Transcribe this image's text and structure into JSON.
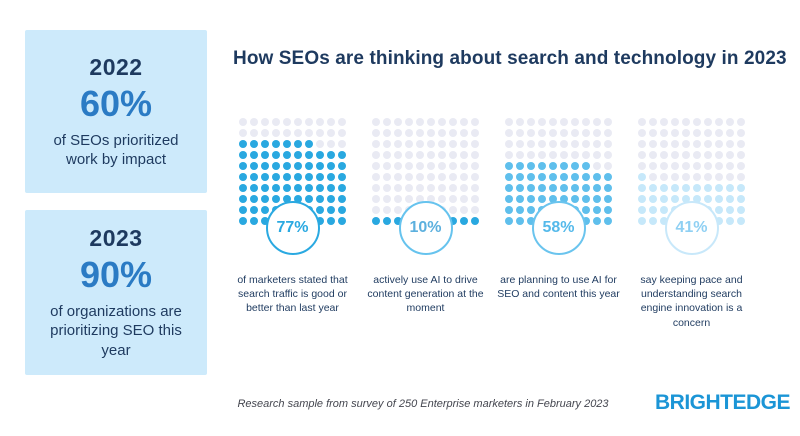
{
  "title": "How SEOs are thinking about search and technology in 2023",
  "sidebar": {
    "cards": [
      {
        "year": "2022",
        "percent": "60%",
        "description": "of SEOs prioritized work by impact"
      },
      {
        "year": "2023",
        "percent": "90%",
        "description": "of organizations are prioritizing SEO this year"
      }
    ]
  },
  "colors": {
    "navy": "#1e3a5f",
    "stat_blue": "#2b7bc4",
    "card_bg": "#cdeafb",
    "logo_blue": "#1b95d6"
  },
  "chart_data": [
    {
      "type": "waffle",
      "rows": 10,
      "cols": 10,
      "value": 77,
      "max": 100,
      "label": "77%",
      "caption": "of marketers stated that search traffic is good or better than last year",
      "fill_color": "#29a8e0",
      "empty_color": "#e9eaf3",
      "circle_border": "#2aa9e1",
      "label_color": "#2aa9e1"
    },
    {
      "type": "waffle",
      "rows": 10,
      "cols": 10,
      "value": 10,
      "max": 100,
      "label": "10%",
      "caption": "actively use AI to drive content generation at the moment",
      "fill_color": "#29a8e0",
      "empty_color": "#e9eaf3",
      "circle_border": "#66c3ee",
      "label_color": "#5cb0de"
    },
    {
      "type": "waffle",
      "rows": 10,
      "cols": 10,
      "value": 58,
      "max": 100,
      "label": "58%",
      "caption": "are planning to use AI for SEO and content this year",
      "fill_color": "#5fbfec",
      "empty_color": "#e9eaf3",
      "circle_border": "#6ac4ee",
      "label_color": "#54b9ea"
    },
    {
      "type": "waffle",
      "rows": 10,
      "cols": 10,
      "value": 41,
      "max": 100,
      "label": "41%",
      "caption": "say keeping pace and understanding search engine innovation is a concern",
      "fill_color": "#c6e8fa",
      "empty_color": "#e9eaf3",
      "circle_border": "#c8e8fa",
      "label_color": "#8fd0f3"
    }
  ],
  "footer": {
    "note": "Research sample from survey of 250 Enterprise marketers in February 2023",
    "brand": "BRIGHTEDGE"
  }
}
